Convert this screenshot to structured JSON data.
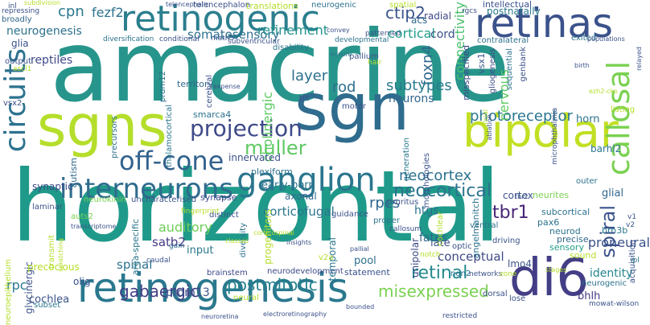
{
  "words": [
    {
      "text": "amacrine",
      "color": "#27958b"
    },
    {
      "text": "horizontal",
      "color": "#1f9a8a"
    },
    {
      "text": "retinogenic",
      "color": "#2b7f8e"
    },
    {
      "text": "sgns",
      "color": "#b5de2b"
    },
    {
      "text": "sgn",
      "color": "#2f6c8e"
    },
    {
      "text": "retinas",
      "color": "#3b528b"
    },
    {
      "text": "bipolar",
      "color": "#c2df23"
    },
    {
      "text": "retinogenesis",
      "color": "#2a788e"
    },
    {
      "text": "di6",
      "color": "#433e85"
    },
    {
      "text": "callosal",
      "color": "#7ad151"
    },
    {
      "text": "circuits",
      "color": "#2c728e"
    },
    {
      "text": "ganglion",
      "color": "#2a768e"
    },
    {
      "text": "interneurons",
      "color": "#2f6c8e"
    },
    {
      "text": "off-cone",
      "color": "#33628d"
    },
    {
      "text": "projection",
      "color": "#3e4989"
    },
    {
      "text": "muller",
      "color": "#5ec962"
    },
    {
      "text": "neocortical",
      "color": "#2c738e"
    },
    {
      "text": "spiral",
      "color": "#3b528b"
    },
    {
      "text": "retinal",
      "color": "#23898e"
    },
    {
      "text": "postmitotic",
      "color": "#26828e"
    },
    {
      "text": "misexpressed",
      "color": "#7ad151"
    },
    {
      "text": "gabaergic",
      "color": "#433e85"
    },
    {
      "text": "rpcs",
      "color": "#31668e"
    },
    {
      "text": "tbr1",
      "color": "#482677"
    },
    {
      "text": "cpn",
      "color": "#2a788e"
    },
    {
      "text": "fezf2",
      "color": "#2c728e"
    },
    {
      "text": "ctip2",
      "color": "#3a548c"
    },
    {
      "text": "cortical",
      "color": "#1f9e89"
    },
    {
      "text": "cord",
      "color": "#3b528b"
    },
    {
      "text": "layer",
      "color": "#2d708e"
    },
    {
      "text": "foxn4",
      "color": "#31688e"
    },
    {
      "text": "rod",
      "color": "#2e6f8e"
    },
    {
      "text": "subtypes",
      "color": "#287c8e"
    },
    {
      "text": "neurons",
      "color": "#31668e"
    },
    {
      "text": "connectivity",
      "color": "#4ac16d"
    },
    {
      "text": "photoreceptor",
      "color": "#2a768e"
    },
    {
      "text": "neocortex",
      "color": "#2c728e"
    },
    {
      "text": "somatosensory",
      "color": "#2d708e"
    },
    {
      "text": "refinement",
      "color": "#21918c"
    },
    {
      "text": "neurogenesis",
      "color": "#2c728e"
    },
    {
      "text": "glia",
      "color": "#3b528b"
    },
    {
      "text": "reptiles",
      "color": "#3e4989"
    },
    {
      "text": "cholinergic",
      "color": "#5ec962"
    },
    {
      "text": "auditory",
      "color": "#6ece58"
    },
    {
      "text": "satb2",
      "color": "#443983"
    },
    {
      "text": "spinal",
      "color": "#2c728e"
    },
    {
      "text": "rpc",
      "color": "#2a788e"
    },
    {
      "text": "prdm13",
      "color": "#3b528b"
    },
    {
      "text": "input",
      "color": "#2a788e"
    },
    {
      "text": "identity",
      "color": "#25848e"
    },
    {
      "text": "proneural",
      "color": "#3b528b"
    },
    {
      "text": "conceptual",
      "color": "#3e4989"
    },
    {
      "text": "fates",
      "color": "#31688e"
    },
    {
      "text": "htgs",
      "color": "#2d708e"
    },
    {
      "text": "cortex",
      "color": "#3b528b"
    },
    {
      "text": "glial",
      "color": "#31668e"
    },
    {
      "text": "horn",
      "color": "#2c728e"
    },
    {
      "text": "barhl2",
      "color": "#2a788e"
    },
    {
      "text": "brn3b",
      "color": "#2a788e"
    },
    {
      "text": "pax6",
      "color": "#2c728e"
    },
    {
      "text": "lmo4",
      "color": "#3b528b"
    },
    {
      "text": "bhlh",
      "color": "#443983"
    },
    {
      "text": "cochlea",
      "color": "#3b528b"
    },
    {
      "text": "corticofugal",
      "color": "#2a768e"
    },
    {
      "text": "early-born",
      "color": "#2c728e"
    },
    {
      "text": "axonal",
      "color": "#31688e"
    },
    {
      "text": "innervated",
      "color": "#3b528b"
    },
    {
      "text": "synapse",
      "color": "#3e4989"
    },
    {
      "text": "plexiform",
      "color": "#2e6f8e"
    },
    {
      "text": "smarca4",
      "color": "#2c728e"
    },
    {
      "text": "territory",
      "color": "#31688e"
    },
    {
      "text": "nervous",
      "color": "#5ec962"
    },
    {
      "text": "radial",
      "color": "#3e4989"
    },
    {
      "text": "acs",
      "color": "#31688e"
    },
    {
      "text": "postnatally",
      "color": "#2a788e"
    },
    {
      "text": "intellectual",
      "color": "#3b528b"
    },
    {
      "text": "exited",
      "color": "#2c728e"
    },
    {
      "text": "contralateral",
      "color": "#2d708e"
    },
    {
      "text": "subcortical",
      "color": "#2c728e"
    },
    {
      "text": "neurites",
      "color": "#7ad151"
    },
    {
      "text": "late",
      "color": "#3b528b"
    },
    {
      "text": "neurod",
      "color": "#2c728e"
    },
    {
      "text": "precise",
      "color": "#31688e"
    },
    {
      "text": "sensory",
      "color": "#1f9e89"
    },
    {
      "text": "statement",
      "color": "#3b528b"
    },
    {
      "text": "neurodevelopment",
      "color": "#3e4989"
    },
    {
      "text": "brainstem",
      "color": "#3e4989"
    },
    {
      "text": "neural",
      "color": "#b5de2b"
    },
    {
      "text": "pool",
      "color": "#2e6f8e"
    },
    {
      "text": "temporal",
      "color": "#2a768e"
    },
    {
      "text": "progenitors",
      "color": "#b5de2b"
    },
    {
      "text": "diversity",
      "color": "#2c728e"
    },
    {
      "text": "distinct",
      "color": "#3b528b"
    },
    {
      "text": "guidance",
      "color": "#3b528b"
    },
    {
      "text": "area-specific",
      "color": "#2a768e"
    },
    {
      "text": "glycinergic",
      "color": "#3b528b"
    },
    {
      "text": "synaptic",
      "color": "#3e4989"
    },
    {
      "text": "autism",
      "color": "#31688e"
    },
    {
      "text": "neuroepithelium",
      "color": "#b5de2b"
    },
    {
      "text": "laminar",
      "color": "#3b528b"
    },
    {
      "text": "precocious",
      "color": "#b5de2b"
    },
    {
      "text": "subset",
      "color": "#2a788e"
    },
    {
      "text": "olig",
      "color": "#3b528b"
    },
    {
      "text": "thalamocortical",
      "color": "#2a768e"
    },
    {
      "text": "prdm12",
      "color": "#2e6f8e"
    },
    {
      "text": "precursors",
      "color": "#2d708e"
    },
    {
      "text": "cerebral",
      "color": "#3b528b"
    },
    {
      "text": "broadly",
      "color": "#31668e"
    },
    {
      "text": "output",
      "color": "#3b528b"
    },
    {
      "text": "vsx2",
      "color": "#3b528b"
    },
    {
      "text": "vsx1",
      "color": "#3b528b"
    },
    {
      "text": "misspecified",
      "color": "#3e4989"
    },
    {
      "text": "gliogenesis",
      "color": "#3e4989"
    },
    {
      "text": "sequential",
      "color": "#2c728e"
    },
    {
      "text": "genbank",
      "color": "#3b528b"
    },
    {
      "text": "disability",
      "color": "#2c728e"
    },
    {
      "text": "pallium",
      "color": "#3b528b"
    },
    {
      "text": "unipolar",
      "color": "#3e4989"
    },
    {
      "text": "morphologies",
      "color": "#3b528b"
    },
    {
      "text": "generation",
      "color": "#2a788e"
    },
    {
      "text": "pruritus",
      "color": "#3b528b"
    },
    {
      "text": "cochlear",
      "color": "#b5de2b"
    },
    {
      "text": "angelmanitch",
      "color": "#2c728e"
    },
    {
      "text": "ventral",
      "color": "#2c728e"
    },
    {
      "text": "optic",
      "color": "#3b528b"
    },
    {
      "text": "driving",
      "color": "#3b528b"
    },
    {
      "text": "proper",
      "color": "#2c728e"
    },
    {
      "text": "ngn2",
      "color": "#2c728e"
    },
    {
      "text": "dorsal",
      "color": "#3b528b"
    },
    {
      "text": "lose",
      "color": "#3b528b"
    },
    {
      "text": "networks",
      "color": "#3b528b"
    },
    {
      "text": "zone",
      "color": "#b5de2b"
    },
    {
      "text": "sound",
      "color": "#b5de2b"
    },
    {
      "text": "outer",
      "color": "#2c728e"
    },
    {
      "text": "acquisition",
      "color": "#3b528b"
    },
    {
      "text": "listing",
      "color": "#b5de2b"
    },
    {
      "text": "neurogenic",
      "color": "#2c728e"
    },
    {
      "text": "mowat-wilson",
      "color": "#3b528b"
    },
    {
      "text": "motor",
      "color": "#3b528b"
    },
    {
      "text": "uncharacterised",
      "color": "#3b528b"
    },
    {
      "text": "fingerprint",
      "color": "#b5de2b"
    },
    {
      "text": "neurokinin",
      "color": "#7ad151"
    },
    {
      "text": "auts2",
      "color": "#7ad151"
    },
    {
      "text": "gain",
      "color": "#2c728e"
    },
    {
      "text": "caudal",
      "color": "#3b528b"
    },
    {
      "text": "transmit",
      "color": "#b5de2b"
    },
    {
      "text": "tfs",
      "color": "#3b528b"
    },
    {
      "text": "translations",
      "color": "#b5de2b"
    },
    {
      "text": "neurogenic",
      "color": "#2c728e"
    },
    {
      "text": "telencephalon",
      "color": "#3b528b"
    },
    {
      "text": "subdivision",
      "color": "#b5de2b"
    },
    {
      "text": "ascl1",
      "color": "#b5de2b"
    },
    {
      "text": "inl",
      "color": "#3b528b"
    },
    {
      "text": "repressing",
      "color": "#3b528b"
    },
    {
      "text": "diversification",
      "color": "#2c728e"
    },
    {
      "text": "conditional",
      "color": "#3b528b"
    },
    {
      "text": "subventricular",
      "color": "#3b528b"
    },
    {
      "text": "math5",
      "color": "#3b528b"
    },
    {
      "text": "developmental",
      "color": "#2c728e"
    },
    {
      "text": "patterned",
      "color": "#3b528b"
    },
    {
      "text": "convey",
      "color": "#3b528b"
    },
    {
      "text": "rgcs",
      "color": "#3b528b"
    },
    {
      "text": "hair",
      "color": "#b5de2b"
    },
    {
      "text": "ensure",
      "color": "#2c728e"
    },
    {
      "text": "expense",
      "color": "#3b528b"
    },
    {
      "text": "populations",
      "color": "#3b528b"
    },
    {
      "text": "birth",
      "color": "#3b528b"
    },
    {
      "text": "relayed",
      "color": "#3b528b"
    },
    {
      "text": "ezh2-cko",
      "color": "#b5de2b"
    },
    {
      "text": "microphthalmia",
      "color": "#3b528b"
    },
    {
      "text": "ablation",
      "color": "#3b528b"
    },
    {
      "text": "superficial",
      "color": "#b5de2b"
    },
    {
      "text": "tbr2",
      "color": "#3b528b"
    },
    {
      "text": "v1",
      "color": "#3b528b"
    },
    {
      "text": "v2",
      "color": "#3b528b"
    },
    {
      "text": "ipl",
      "color": "#2c728e"
    },
    {
      "text": "v2a",
      "color": "#b5de2b"
    },
    {
      "text": "notch",
      "color": "#b5de2b"
    },
    {
      "text": "stages",
      "color": "#b5de2b"
    },
    {
      "text": "insights",
      "color": "#3b528b"
    },
    {
      "text": "pallial",
      "color": "#3b528b"
    },
    {
      "text": "classes",
      "color": "#b5de2b"
    },
    {
      "text": "corticospinal",
      "color": "#b5de2b"
    },
    {
      "text": "transcriptome",
      "color": "#3b528b"
    },
    {
      "text": "callosum",
      "color": "#3b528b"
    },
    {
      "text": "electroretinography",
      "color": "#3b528b"
    },
    {
      "text": "neuroretina",
      "color": "#3b528b"
    },
    {
      "text": "restricted",
      "color": "#3b528b"
    },
    {
      "text": "spatial",
      "color": "#b5de2b"
    },
    {
      "text": "telencephalic",
      "color": "#3b528b"
    },
    {
      "text": "scratching",
      "color": "#b5de2b"
    },
    {
      "text": "bounded",
      "color": "#3b528b"
    }
  ]
}
